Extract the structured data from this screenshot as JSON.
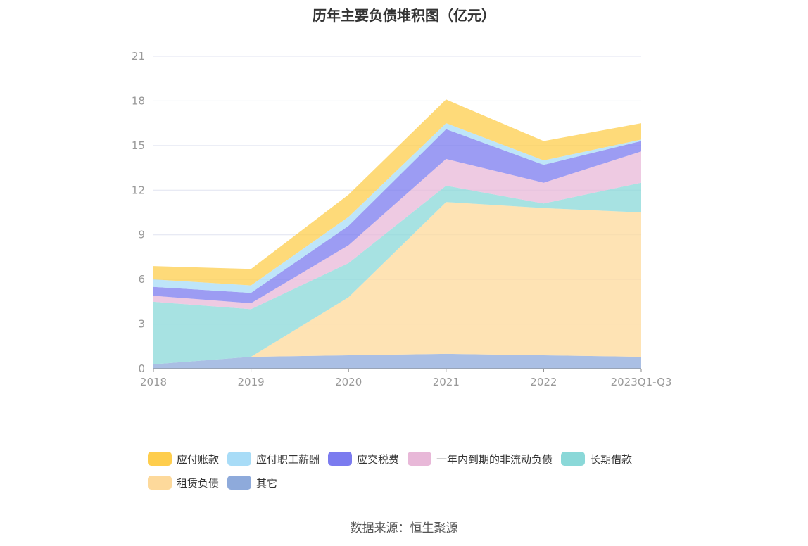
{
  "chart_data": {
    "type": "area",
    "title": "历年主要负债堆积图（亿元）",
    "categories": [
      "2018",
      "2019",
      "2020",
      "2021",
      "2022",
      "2023Q1-Q3"
    ],
    "ylim": [
      0,
      21
    ],
    "yticks": [
      0,
      3,
      6,
      9,
      12,
      15,
      18,
      21
    ],
    "stacked": true,
    "grid": true,
    "legend_position": "bottom",
    "series": [
      {
        "name": "其它",
        "color": "#8eaadb",
        "values": [
          0.3,
          0.8,
          0.9,
          1.0,
          0.9,
          0.8
        ]
      },
      {
        "name": "租赁负债",
        "color": "#fdd99b",
        "values": [
          0.0,
          0.0,
          3.9,
          10.2,
          9.9,
          9.7
        ]
      },
      {
        "name": "长期借款",
        "color": "#8ad8d8",
        "values": [
          4.2,
          3.2,
          2.3,
          1.1,
          0.3,
          2.0
        ]
      },
      {
        "name": "一年内到期的非流动负债",
        "color": "#e8b8d8",
        "values": [
          0.4,
          0.4,
          1.2,
          1.8,
          1.4,
          2.1
        ]
      },
      {
        "name": "应交税费",
        "color": "#7b7bef",
        "values": [
          0.6,
          0.7,
          1.3,
          2.0,
          1.2,
          0.7
        ]
      },
      {
        "name": "应付职工薪酬",
        "color": "#a8dcf7",
        "values": [
          0.5,
          0.5,
          0.6,
          0.4,
          0.3,
          0.1
        ]
      },
      {
        "name": "应付账款",
        "color": "#fecd4c",
        "values": [
          0.9,
          1.1,
          1.5,
          1.6,
          1.3,
          1.1
        ]
      }
    ],
    "legend_order": [
      "应付账款",
      "应付职工薪酬",
      "应交税费",
      "一年内到期的非流动负债",
      "长期借款",
      "租赁负债",
      "其它"
    ]
  },
  "source": "数据来源：恒生聚源"
}
